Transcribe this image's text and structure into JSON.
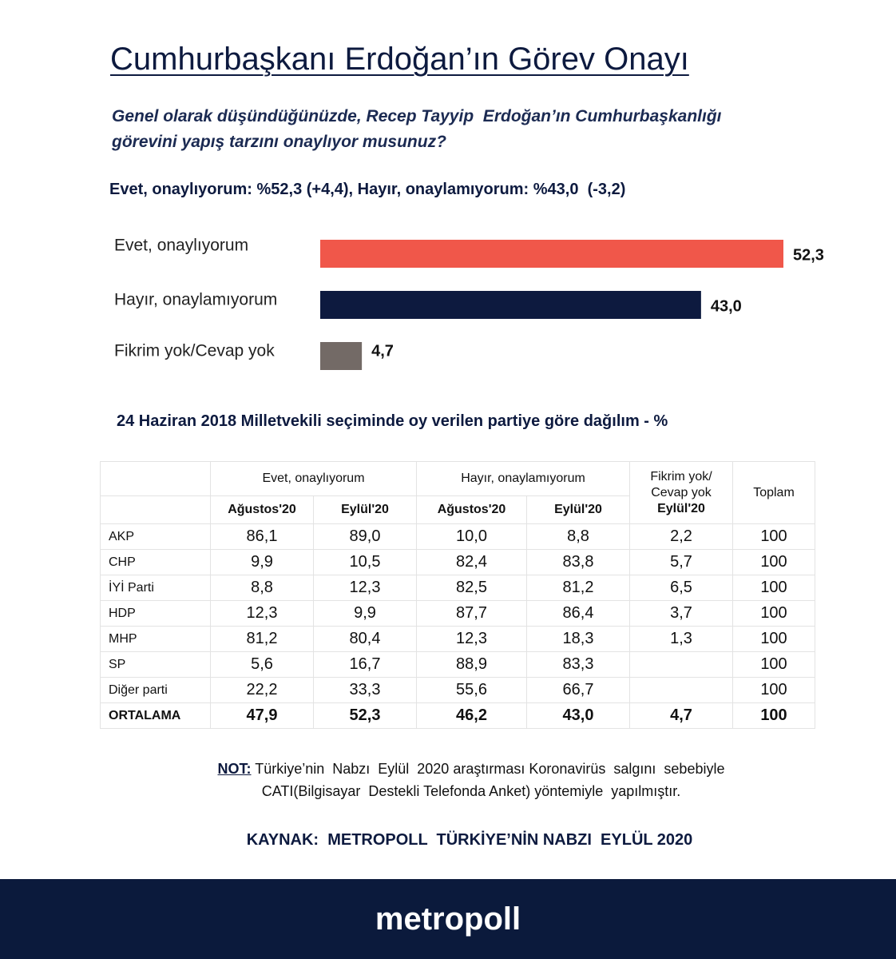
{
  "title": "Cumhurbaşkanı Erdoğan’ın Görev Onayı",
  "question": [
    "Genel olarak düşündüğünüzde, Recep Tayyip  Erdoğan’ın Cumhurbaşkanlığı",
    "görevini yapış tarzını onaylıyor musunuz?"
  ],
  "summary": "Evet, onaylıyorum: %52,3 (+4,4), Hayır, onaylamıyorum: %43,0  (-3,2)",
  "chart_data": {
    "type": "bar",
    "orientation": "horizontal",
    "categories": [
      "Evet, onaylıyorum",
      "Hayır, onaylamıyorum",
      "Fikrim yok/Cevap yok"
    ],
    "values": [
      52.3,
      43.0,
      4.7
    ],
    "value_labels": [
      "52,3",
      "43,0",
      "4,7"
    ],
    "colors": [
      "#f0574a",
      "#0d1a3f",
      "#736a66"
    ]
  },
  "table_title": "24 Haziran 2018 Milletvekili seçiminde oy verilen partiye göre dağılım - %",
  "table": {
    "groups": [
      "Evet, onaylıyorum",
      "Hayır, onaylamıyorum"
    ],
    "extra_header": [
      "Fikrim  yok/",
      "Cevap  yok"
    ],
    "total_header": "Toplam",
    "subheaders": [
      "Ağustos'20",
      "Eylül'20",
      "Ağustos'20",
      "Eylül'20",
      "Eylül'20"
    ],
    "rows": [
      [
        "AKP",
        "86,1",
        "89,0",
        "10,0",
        "8,8",
        "2,2",
        "100"
      ],
      [
        "CHP",
        "9,9",
        "10,5",
        "82,4",
        "83,8",
        "5,7",
        "100"
      ],
      [
        "İYİ Parti",
        "8,8",
        "12,3",
        "82,5",
        "81,2",
        "6,5",
        "100"
      ],
      [
        "HDP",
        "12,3",
        "9,9",
        "87,7",
        "86,4",
        "3,7",
        "100"
      ],
      [
        "MHP",
        "81,2",
        "80,4",
        "12,3",
        "18,3",
        "1,3",
        "100"
      ],
      [
        "SP",
        "5,6",
        "16,7",
        "88,9",
        "83,3",
        null,
        "100"
      ],
      [
        "Diğer parti",
        "22,2",
        "33,3",
        "55,6",
        "66,7",
        null,
        "100"
      ],
      [
        "ORTALAMA",
        "47,9",
        "52,3",
        "46,2",
        "43,0",
        "4,7",
        "100"
      ]
    ]
  },
  "note": {
    "label": "NOT:",
    "lines": [
      "Türkiye’nin  Nabzı  Eylül  2020 araştırması Koronavirüs  salgını  sebebiyle",
      "CATI(Bilgisayar  Destekli Telefonda Anket) yöntemiyle  yapılmıştır."
    ]
  },
  "source": "KAYNAK:  METROPOLL  TÜRKİYE’NİN NABZI  EYLÜL 2020",
  "footer": "metropoll"
}
